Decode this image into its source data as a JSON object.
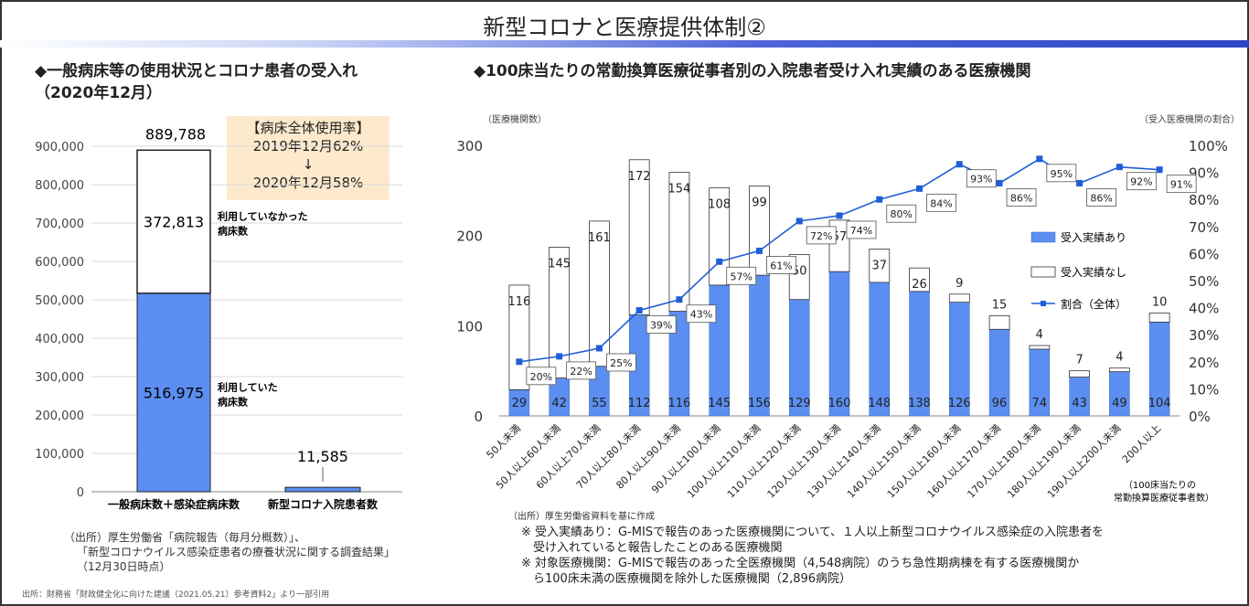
{
  "title": "新型コロナと医療提供体制②",
  "left": {
    "heading_line1": "◆一般病床等の使用状況とコロナ患者の受入れ",
    "heading_line2": "（2020年12月）",
    "callout": {
      "line1": "【病床全体使用率】",
      "line2": "2019年12月62%",
      "arrow": "↓",
      "line3": "2020年12月58%"
    },
    "source_lines": [
      "（出所）厚生労働省「病院報告（毎月分概数）」、",
      "「新型コロナウイルス感染症患者の療養状況に関する調査結果」",
      "（12月30日時点）"
    ]
  },
  "right": {
    "heading": "◆100床当たりの常勤換算医療従事者別の入院患者受け入れ実績のある医療機関",
    "source": "（出所）厚生労働省資料を基に作成",
    "notes": [
      "※ 受入実績あり：G-MISで報告のあった医療機関について、１人以上新型コロナウイルス感染症の入院患者を",
      "　受け入れていると報告したことのある医療機関",
      "※ 対象医療機関：G-MISで報告のあった全医療機関（4,548病院）のうち急性期病棟を有する医療機関か",
      "　ら100床未満の医療機関を除外した医療機関（2,896病院）"
    ]
  },
  "footer": "出所：財務省「財政健全化に向けた建議（2021.05.21）参考資料2」より一部引用",
  "colors": {
    "blue": "#5b8ef0",
    "line": "#1f5fd6",
    "white_bar": "#ffffff"
  },
  "chart_data": [
    {
      "type": "bar",
      "stacked": true,
      "categories": [
        "一般病床数＋感染症病床数",
        "新型コロナ入院患者数"
      ],
      "series": [
        {
          "name": "利用していた病床数",
          "values": [
            516975,
            11585
          ]
        },
        {
          "name": "利用していなかった病床数",
          "values": [
            372813,
            0
          ]
        }
      ],
      "totals": [
        889788,
        11585
      ],
      "total_labels": [
        "889,788",
        "11,585"
      ],
      "segment_labels": [
        "516,975",
        "372,813"
      ],
      "annotations": [
        "利用していなかった",
        "病床数",
        "利用していた",
        "病床数"
      ],
      "ylim": [
        0,
        900000
      ],
      "yticks": [
        0,
        100000,
        200000,
        300000,
        400000,
        500000,
        600000,
        700000,
        800000,
        900000
      ],
      "ytick_labels": [
        "0",
        "100,000",
        "200,000",
        "300,000",
        "400,000",
        "500,000",
        "600,000",
        "700,000",
        "800,000",
        "900,000"
      ]
    },
    {
      "type": "bar",
      "stacked": true,
      "categories": [
        "50人未満",
        "50人以上60人未満",
        "60人以上70人未満",
        "70人以上80人未満",
        "80人以上90人未満",
        "90人以上100人未満",
        "100人以上110人未満",
        "110人以上120人未満",
        "120人以上130人未満",
        "130人以上140人未満",
        "140人以上150人未満",
        "150人以上160人未満",
        "160人以上170人未満",
        "170人以上180人未満",
        "180人以上190人未満",
        "190人以上200人未満",
        "200人以上"
      ],
      "series": [
        {
          "name": "受入実績あり",
          "values": [
            29,
            42,
            55,
            112,
            116,
            145,
            156,
            129,
            160,
            148,
            138,
            126,
            96,
            74,
            43,
            49,
            104
          ]
        },
        {
          "name": "受入実績なし",
          "values": [
            116,
            145,
            161,
            172,
            154,
            108,
            99,
            50,
            57,
            37,
            26,
            9,
            15,
            4,
            7,
            4,
            10
          ]
        },
        {
          "name": "割合（全体）",
          "type": "line",
          "axis": "right",
          "values": [
            20,
            22,
            25,
            39,
            43,
            57,
            61,
            72,
            74,
            80,
            84,
            93,
            86,
            95,
            86,
            92,
            91
          ],
          "labels": [
            "20%",
            "22%",
            "25%",
            "39%",
            "43%",
            "57%",
            "61%",
            "72%",
            "74%",
            "80%",
            "84%",
            "93%",
            "86%",
            "95%",
            "86%",
            "92%",
            "91%"
          ]
        }
      ],
      "ylabel_left": "（医療機関数）",
      "ylabel_right": "（受入医療機関の割合）",
      "xlabel_lines": [
        "（100床当たりの",
        "常勤換算医療従事者数）"
      ],
      "ylim": [
        0,
        300
      ],
      "yticks": [
        0,
        100,
        200,
        300
      ],
      "y2lim": [
        0,
        100
      ],
      "y2ticks": [
        0,
        10,
        20,
        30,
        40,
        50,
        60,
        70,
        80,
        90,
        100
      ],
      "y2tick_labels": [
        "0%",
        "10%",
        "20%",
        "30%",
        "40%",
        "50%",
        "60%",
        "70%",
        "80%",
        "90%",
        "100%"
      ],
      "legend_position": "right"
    }
  ]
}
